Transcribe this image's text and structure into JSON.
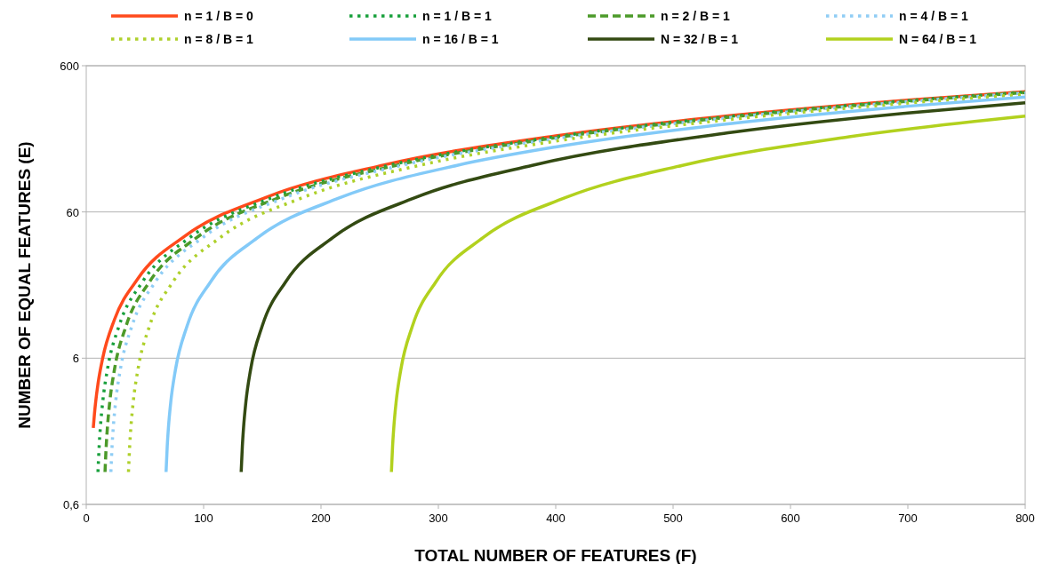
{
  "chart_data": {
    "type": "line",
    "xlabel": "TOTAL NUMBER OF FEATURES (F)",
    "ylabel": "NUMBER OF EQUAL FEATURES (E)",
    "log": "y",
    "grid": "y",
    "legend": "top",
    "xlim": [
      0,
      800
    ],
    "xticks": [
      0,
      100,
      200,
      300,
      400,
      500,
      600,
      700,
      800
    ],
    "ylim": [
      0.6,
      600
    ],
    "yticks": [
      {
        "value": 0.6,
        "label": "0,6"
      },
      6,
      60,
      600
    ],
    "series": [
      {
        "name": "n = 1 / B = 0",
        "color": "#ff4a1c",
        "line_style": "solid",
        "x": [
          6,
          7,
          8,
          10,
          14,
          24,
          44,
          84,
          154,
          254,
          400,
          550,
          700,
          800
        ],
        "values": [
          2,
          2.5,
          3,
          4,
          6,
          11,
          21,
          41,
          76,
          126,
          199,
          274,
          349,
          399
        ]
      },
      {
        "name": "n = 1 / B = 1",
        "color": "#18a03c",
        "line_style": "dotted",
        "x": [
          10,
          11,
          12,
          14,
          18,
          28,
          48,
          88,
          158,
          258,
          400,
          550,
          700,
          800
        ],
        "values": [
          1,
          1.5,
          2,
          3,
          5,
          10,
          20,
          40,
          75,
          125,
          196,
          271,
          346,
          396
        ]
      },
      {
        "name": "n = 2 / B = 1",
        "color": "#4c9a2a",
        "line_style": "dashed",
        "x": [
          16,
          17,
          18,
          20,
          24,
          34,
          54,
          94,
          164,
          264,
          400,
          550,
          700,
          800
        ],
        "values": [
          1,
          1.5,
          2,
          3,
          5,
          10,
          20,
          40,
          75,
          125,
          193,
          268,
          343,
          393
        ]
      },
      {
        "name": "n = 4 / B = 1",
        "color": "#8fcdf5",
        "line_style": "dotted",
        "x": [
          21,
          22,
          23,
          25,
          29,
          39,
          59,
          99,
          169,
          269,
          400,
          550,
          700,
          800
        ],
        "values": [
          1,
          1.5,
          2,
          3,
          5,
          10,
          20,
          40,
          75,
          125,
          190.5,
          265.5,
          340.5,
          390.5
        ]
      },
      {
        "name": "n = 8 / B = 1",
        "color": "#aed02a",
        "line_style": "dotted",
        "x": [
          36,
          37,
          38,
          40,
          44,
          54,
          74,
          114,
          184,
          284,
          400,
          550,
          700,
          800
        ],
        "values": [
          1,
          1.5,
          2,
          3,
          5,
          10,
          20,
          40,
          75,
          125,
          183,
          258,
          333,
          383
        ]
      },
      {
        "name": "n = 16 / B = 1",
        "color": "#83caf8",
        "line_style": "solid",
        "x": [
          68,
          69,
          70,
          72,
          76,
          86,
          106,
          146,
          216,
          316,
          400,
          550,
          700,
          800
        ],
        "values": [
          1,
          1.5,
          2,
          3,
          5,
          10,
          20,
          40,
          75,
          125,
          167,
          242,
          317,
          367
        ]
      },
      {
        "name": "N = 32 / B = 1",
        "color": "#334a12",
        "line_style": "solid",
        "x": [
          132,
          133,
          134,
          136,
          140,
          150,
          170,
          210,
          280,
          380,
          550,
          700,
          800
        ],
        "values": [
          1,
          1.5,
          2,
          3,
          5,
          10,
          20,
          40,
          75,
          125,
          210,
          285,
          335
        ]
      },
      {
        "name": "N = 64 / B = 1",
        "color": "#b2d11e",
        "line_style": "solid",
        "x": [
          260,
          261,
          262,
          264,
          268,
          278,
          298,
          338,
          408,
          508,
          650,
          800
        ],
        "values": [
          1,
          1.5,
          2,
          3,
          5,
          10,
          20,
          40,
          75,
          125,
          196,
          271
        ]
      }
    ]
  }
}
